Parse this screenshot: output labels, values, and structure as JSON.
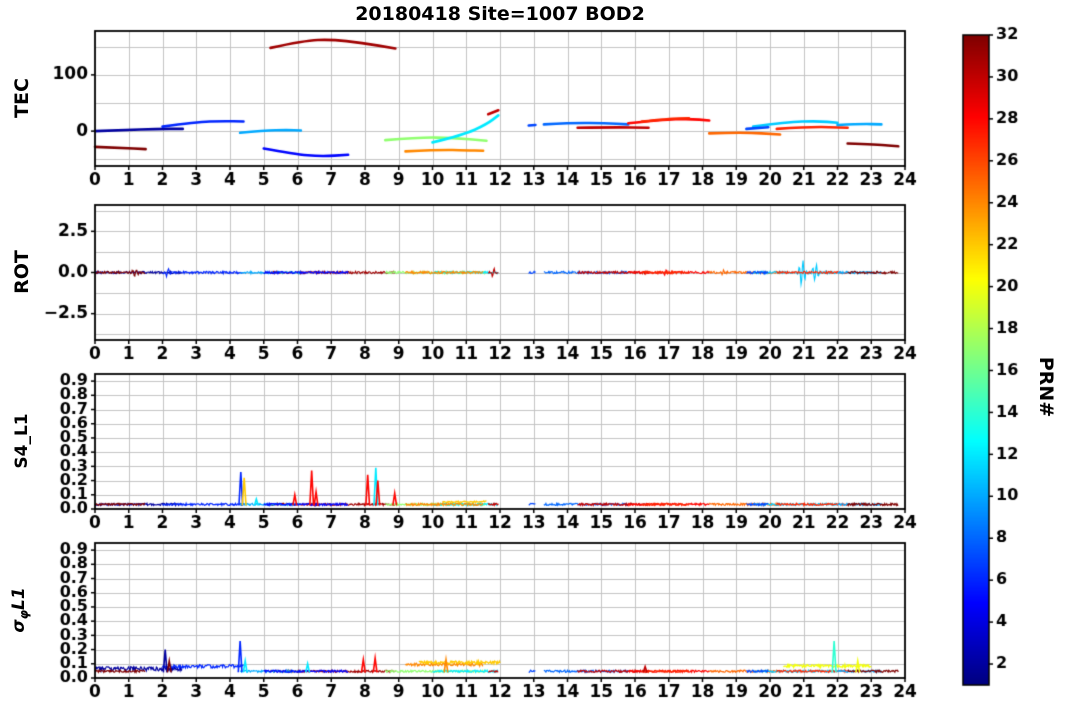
{
  "figure": {
    "title": "20180418 Site=1007 BOD2"
  },
  "xaxis": {
    "min": 0,
    "max": 24,
    "ticks": [
      0,
      1,
      2,
      3,
      4,
      5,
      6,
      7,
      8,
      9,
      10,
      11,
      12,
      13,
      14,
      15,
      16,
      17,
      18,
      19,
      20,
      21,
      22,
      23,
      24
    ]
  },
  "panels": [
    {
      "id": "tec",
      "ylabel": "TEC",
      "ylim": [
        -62,
        178
      ],
      "yticks": [
        {
          "v": 0,
          "label": "0"
        },
        {
          "v": 100,
          "label": "100"
        }
      ],
      "grid_y": [
        -50,
        0,
        50,
        100,
        150
      ]
    },
    {
      "id": "rot",
      "ylabel": "ROT",
      "ylim": [
        -4.1,
        4.1
      ],
      "yticks": [
        {
          "v": -2.5,
          "label": "−2.5"
        },
        {
          "v": 0,
          "label": "0.0"
        },
        {
          "v": 2.5,
          "label": "2.5"
        }
      ],
      "grid_y": [
        -3.75,
        -2.5,
        -1.25,
        0,
        1.25,
        2.5,
        3.75
      ]
    },
    {
      "id": "s4",
      "ylabel": "S4_L1",
      "ylim": [
        0,
        0.95
      ],
      "yticks": [
        {
          "v": 0,
          "label": "0.0"
        },
        {
          "v": 0.1,
          "label": "0.1"
        },
        {
          "v": 0.2,
          "label": "0.2"
        },
        {
          "v": 0.3,
          "label": "0.3"
        },
        {
          "v": 0.4,
          "label": "0.4"
        },
        {
          "v": 0.5,
          "label": "0.5"
        },
        {
          "v": 0.6,
          "label": "0.6"
        },
        {
          "v": 0.7,
          "label": "0.7"
        },
        {
          "v": 0.8,
          "label": "0.8"
        },
        {
          "v": 0.9,
          "label": "0.9"
        }
      ],
      "grid_y": [
        0.1,
        0.2,
        0.3,
        0.4,
        0.5,
        0.6,
        0.7,
        0.8,
        0.9
      ]
    },
    {
      "id": "sigma_phi",
      "ylabel_sigma": "σ",
      "ylabel_sub": "φ",
      "ylabel_suffix": "L1",
      "ylim": [
        0,
        0.95
      ],
      "yticks": [
        {
          "v": 0,
          "label": "0.0"
        },
        {
          "v": 0.1,
          "label": "0.1"
        },
        {
          "v": 0.2,
          "label": "0.2"
        },
        {
          "v": 0.3,
          "label": "0.3"
        },
        {
          "v": 0.4,
          "label": "0.4"
        },
        {
          "v": 0.5,
          "label": "0.5"
        },
        {
          "v": 0.6,
          "label": "0.6"
        },
        {
          "v": 0.7,
          "label": "0.7"
        },
        {
          "v": 0.8,
          "label": "0.8"
        },
        {
          "v": 0.9,
          "label": "0.9"
        }
      ],
      "grid_y": [
        0.1,
        0.2,
        0.3,
        0.4,
        0.5,
        0.6,
        0.7,
        0.8,
        0.9
      ]
    }
  ],
  "colorbar": {
    "label": "PRN#",
    "min": 1,
    "max": 32,
    "ticks": [
      2,
      4,
      6,
      8,
      10,
      12,
      14,
      16,
      18,
      20,
      22,
      24,
      26,
      28,
      30,
      32
    ],
    "colormap": [
      {
        "p": 0,
        "c": "#00007f"
      },
      {
        "p": 0.125,
        "c": "#0000ff"
      },
      {
        "p": 0.375,
        "c": "#00ffff"
      },
      {
        "p": 0.625,
        "c": "#ffff00"
      },
      {
        "p": 0.875,
        "c": "#ff0000"
      },
      {
        "p": 1,
        "c": "#7f0000"
      }
    ]
  },
  "chart_data": {
    "type": "line",
    "title": "20180418 Site=1007 BOD2",
    "xlabel": "",
    "ylabels": [
      "TEC",
      "ROT",
      "S4_L1",
      "σφL1"
    ],
    "x_range_hours": [
      0,
      24
    ],
    "series": [
      {
        "prn": 2,
        "pts": [
          [
            0.0,
            0
          ],
          [
            0.9,
            2
          ],
          [
            1.8,
            4
          ],
          [
            2.6,
            4
          ]
        ],
        "sp_base": 0.05,
        "sp_amp": 0.03
      },
      {
        "prn": 32,
        "pts": [
          [
            0.0,
            -28
          ],
          [
            0.8,
            -30
          ],
          [
            1.5,
            -32
          ]
        ]
      },
      {
        "prn": 6,
        "pts": [
          [
            2.0,
            8
          ],
          [
            3.0,
            16
          ],
          [
            3.8,
            18
          ],
          [
            4.4,
            17
          ]
        ],
        "sp_base": 0.07,
        "sp_amp": 0.025
      },
      {
        "prn": 31,
        "pts": [
          [
            5.2,
            148
          ],
          [
            6.2,
            161
          ],
          [
            7.0,
            163
          ],
          [
            7.9,
            157
          ],
          [
            8.9,
            147
          ]
        ]
      },
      {
        "prn": 10,
        "pts": [
          [
            4.3,
            -3
          ],
          [
            5.0,
            1
          ],
          [
            5.7,
            2
          ],
          [
            6.1,
            1
          ]
        ]
      },
      {
        "prn": 5,
        "pts": [
          [
            5.0,
            -31
          ],
          [
            5.9,
            -41
          ],
          [
            6.7,
            -45
          ],
          [
            7.5,
            -42
          ]
        ]
      },
      {
        "prn": 17,
        "pts": [
          [
            8.6,
            -16
          ],
          [
            9.6,
            -11
          ],
          [
            10.6,
            -12
          ],
          [
            11.6,
            -17
          ]
        ]
      },
      {
        "prn": 12,
        "pts": [
          [
            10.0,
            -20
          ],
          [
            10.9,
            -7
          ],
          [
            11.6,
            12
          ],
          [
            11.95,
            28
          ]
        ]
      },
      {
        "prn": 24,
        "pts": [
          [
            9.2,
            -36
          ],
          [
            10.2,
            -33
          ],
          [
            11.0,
            -34
          ],
          [
            11.5,
            -35
          ]
        ],
        "sp_base": 0.085,
        "sp_amp": 0.02
      },
      {
        "prn": 30,
        "pts": [
          [
            11.65,
            30
          ],
          [
            11.95,
            37
          ]
        ]
      },
      {
        "prn": 7,
        "pts": [
          [
            12.85,
            10
          ],
          [
            13.05,
            11
          ]
        ]
      },
      {
        "prn": 8,
        "pts": [
          [
            13.3,
            12
          ],
          [
            14.2,
            15
          ],
          [
            15.1,
            14
          ],
          [
            15.8,
            12
          ]
        ]
      },
      {
        "prn": 30,
        "pts": [
          [
            14.3,
            6
          ],
          [
            15.4,
            7
          ],
          [
            16.4,
            6
          ]
        ]
      },
      {
        "prn": 28,
        "pts": [
          [
            15.8,
            14
          ],
          [
            16.8,
            20
          ],
          [
            17.6,
            22
          ],
          [
            18.2,
            19
          ]
        ]
      },
      {
        "prn": 27,
        "pts": [
          [
            16.2,
            17
          ],
          [
            17.0,
            22
          ],
          [
            17.6,
            23
          ]
        ]
      },
      {
        "prn": 25,
        "pts": [
          [
            18.2,
            -4
          ],
          [
            19.2,
            -2
          ],
          [
            20.3,
            -6
          ]
        ]
      },
      {
        "prn": 11,
        "pts": [
          [
            19.5,
            8
          ],
          [
            20.5,
            16
          ],
          [
            21.4,
            18
          ],
          [
            22.0,
            15
          ]
        ]
      },
      {
        "prn": 7,
        "pts": [
          [
            19.3,
            4
          ],
          [
            19.95,
            7
          ]
        ]
      },
      {
        "prn": 27,
        "pts": [
          [
            20.2,
            4
          ],
          [
            21.2,
            8
          ],
          [
            22.3,
            6
          ]
        ]
      },
      {
        "prn": 10,
        "pts": [
          [
            22.0,
            11
          ],
          [
            22.7,
            13
          ],
          [
            23.3,
            12
          ]
        ]
      },
      {
        "prn": 32,
        "pts": [
          [
            22.3,
            -22
          ],
          [
            23.2,
            -24
          ],
          [
            23.8,
            -27
          ]
        ]
      }
    ],
    "rot_default_amp": 0.07,
    "rot_events": [
      {
        "prn": 11,
        "t": 20.95,
        "amp": 0.8,
        "w": 0.1
      },
      {
        "prn": 11,
        "t": 21.35,
        "amp": 0.55,
        "w": 0.09
      },
      {
        "prn": 32,
        "t": 1.2,
        "amp": 0.18,
        "w": 0.12
      },
      {
        "prn": 6,
        "t": 2.15,
        "amp": 0.22,
        "w": 0.07
      },
      {
        "prn": 30,
        "t": 11.8,
        "amp": 0.35,
        "w": 0.05
      },
      {
        "prn": 28,
        "t": 16.9,
        "amp": 0.15,
        "w": 0.05
      },
      {
        "prn": 25,
        "t": 18.6,
        "amp": 0.12,
        "w": 0.05
      }
    ],
    "s4_default_base": 0.025,
    "s4_noise_amp": 0.015,
    "s4_spikes": [
      {
        "prn": 6,
        "t": 4.32,
        "v": 0.26
      },
      {
        "prn": 22,
        "t": 4.42,
        "v": 0.22
      },
      {
        "prn": 12,
        "t": 4.78,
        "v": 0.07
      },
      {
        "prn": 28,
        "t": 5.92,
        "v": 0.1
      },
      {
        "prn": 28,
        "t": 6.42,
        "v": 0.27
      },
      {
        "prn": 28,
        "t": 6.55,
        "v": 0.12
      },
      {
        "prn": 28,
        "t": 8.08,
        "v": 0.24
      },
      {
        "prn": 12,
        "t": 8.32,
        "v": 0.29
      },
      {
        "prn": 28,
        "t": 8.38,
        "v": 0.2
      },
      {
        "prn": 28,
        "t": 8.88,
        "v": 0.11
      }
    ],
    "s4_extra_segments": [
      {
        "prn": 22,
        "t0": 10.3,
        "t1": 11.6,
        "base": 0.045,
        "amp": 0.012
      }
    ],
    "sigma_default_base": 0.04,
    "sigma_noise_amp": 0.015,
    "sigma_spikes": [
      {
        "prn": 2,
        "t": 2.08,
        "v": 0.2
      },
      {
        "prn": 32,
        "t": 2.2,
        "v": 0.12
      },
      {
        "prn": 6,
        "t": 4.3,
        "v": 0.26
      },
      {
        "prn": 12,
        "t": 4.45,
        "v": 0.12
      },
      {
        "prn": 12,
        "t": 6.3,
        "v": 0.1
      },
      {
        "prn": 28,
        "t": 7.95,
        "v": 0.13
      },
      {
        "prn": 28,
        "t": 8.3,
        "v": 0.14
      },
      {
        "prn": 24,
        "t": 10.4,
        "v": 0.13
      },
      {
        "prn": 14,
        "t": 21.9,
        "v": 0.26
      },
      {
        "prn": 20,
        "t": 22.6,
        "v": 0.12
      },
      {
        "prn": 30,
        "t": 16.3,
        "v": 0.08
      }
    ],
    "sigma_extra_segments": [
      {
        "prn": 20,
        "t0": 20.4,
        "t1": 23.0,
        "base": 0.075,
        "amp": 0.02
      },
      {
        "prn": 22,
        "t0": 9.6,
        "t1": 12.0,
        "base": 0.1,
        "amp": 0.02
      }
    ]
  }
}
